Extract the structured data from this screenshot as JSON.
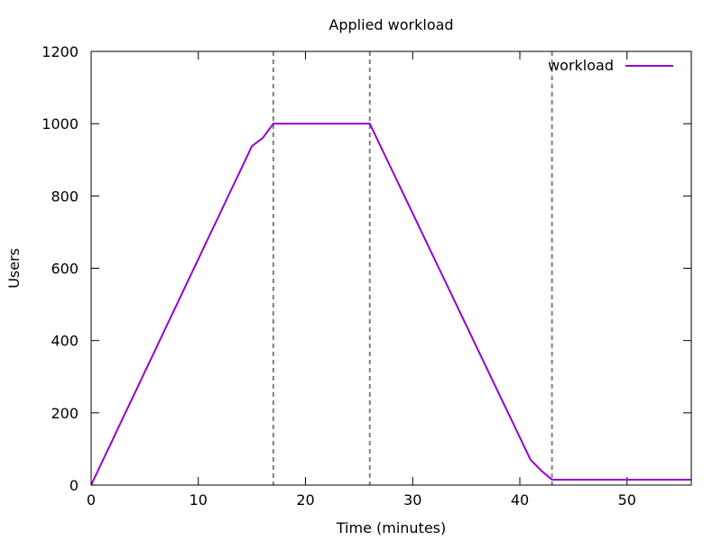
{
  "chart_data": {
    "type": "line",
    "title": "Applied workload",
    "xlabel": "Time (minutes)",
    "ylabel": "Users",
    "xlim": [
      0,
      56
    ],
    "ylim": [
      0,
      1200
    ],
    "xticks": [
      0,
      10,
      20,
      30,
      40,
      50
    ],
    "yticks": [
      0,
      200,
      400,
      600,
      800,
      1000,
      1200
    ],
    "grid": false,
    "legend": "top-right",
    "vlines": [
      17,
      26,
      43
    ],
    "series": [
      {
        "name": "workload",
        "color": "#9400d3",
        "x": [
          0,
          1,
          2,
          3,
          4,
          5,
          6,
          7,
          8,
          9,
          10,
          11,
          12,
          13,
          14,
          15,
          16,
          17,
          18,
          19,
          20,
          21,
          22,
          23,
          24,
          25,
          26,
          27,
          28,
          29,
          30,
          31,
          32,
          33,
          34,
          35,
          36,
          37,
          38,
          39,
          40,
          41,
          42,
          43,
          44,
          45,
          46,
          47,
          48,
          49,
          50,
          51,
          52,
          53,
          54,
          55,
          56
        ],
        "y": [
          0,
          63,
          125,
          188,
          250,
          313,
          375,
          438,
          500,
          563,
          625,
          688,
          750,
          813,
          875,
          938,
          960,
          1000,
          1000,
          1000,
          1000,
          1000,
          1000,
          1000,
          1000,
          1000,
          1000,
          938,
          876,
          814,
          752,
          690,
          628,
          566,
          504,
          442,
          380,
          318,
          256,
          194,
          132,
          70,
          40,
          15,
          15,
          15,
          15,
          15,
          15,
          15,
          15,
          15,
          15,
          15,
          15,
          15,
          15
        ]
      }
    ]
  }
}
